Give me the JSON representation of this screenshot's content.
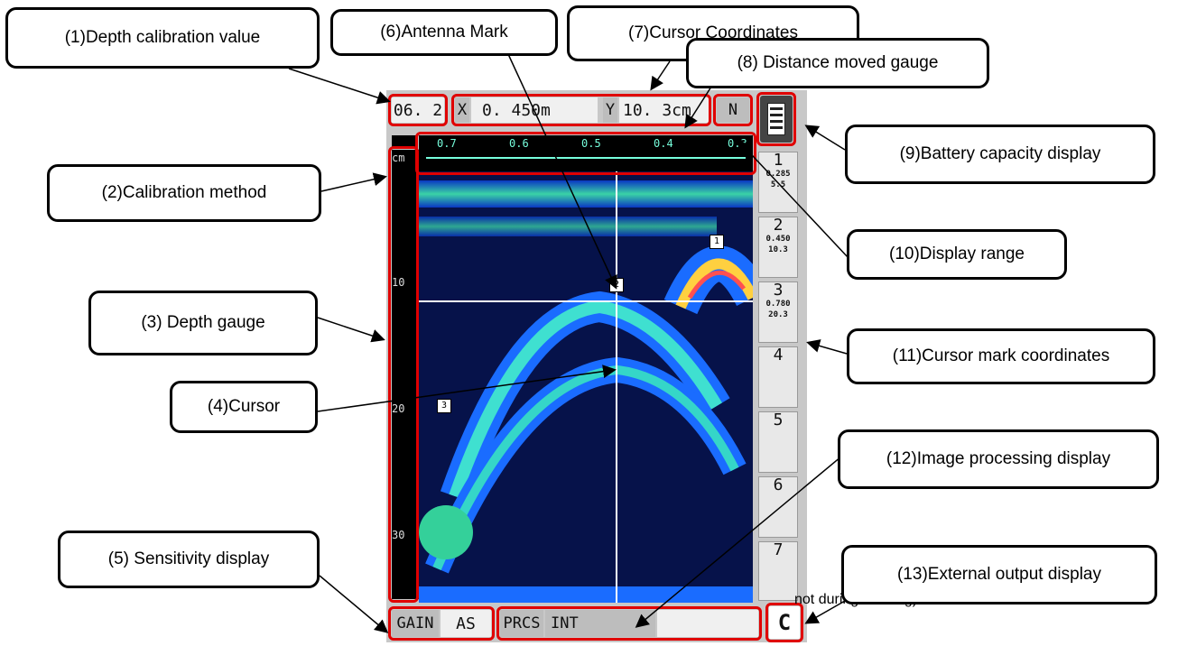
{
  "callouts": {
    "c1": "(1)Depth calibration value",
    "c2": "(2)Calibration method",
    "c3": "(3) Depth gauge",
    "c4": "(4)Cursor",
    "c5": "(5) Sensitivity display",
    "c6": "(6)Antenna Mark",
    "c7": "(7)Cursor Coordinates",
    "c8": "(8) Distance moved gauge",
    "c9": "(9)Battery capacity display",
    "c10": "(10)Display range",
    "c11": "(11)Cursor mark coordinates",
    "c12": "(12)Image processing display",
    "c13": "(13)External output display"
  },
  "note_text": "not during sensing)",
  "screen": {
    "depth_cal": "06. 2",
    "x_label": "X",
    "x_value": "0. 450m",
    "y_label": "Y",
    "y_value": "10. 3cm",
    "mode_letter": "N",
    "unit": "cm",
    "distance_ticks": [
      "0.7",
      "0.6",
      "0.5",
      "0.4",
      "0.3"
    ],
    "depth_ticks": [
      "10",
      "20",
      "30"
    ],
    "gain_label": "GAIN",
    "gain_value": "AS",
    "prcs_label": "PRCS",
    "prcs_value": "INT",
    "output_letter": "C",
    "marks": [
      {
        "num": "1",
        "x": "0.285",
        "y": "5.5"
      },
      {
        "num": "2",
        "x": "0.450",
        "y": "10.3"
      },
      {
        "num": "3",
        "x": "0.780",
        "y": "20.3"
      },
      {
        "num": "4"
      },
      {
        "num": "5"
      },
      {
        "num": "6"
      },
      {
        "num": "7"
      }
    ],
    "radar_marks": [
      "1",
      "2",
      "3"
    ]
  },
  "colors": {
    "highlight": "#e00000",
    "radar_background": "#06124a"
  }
}
